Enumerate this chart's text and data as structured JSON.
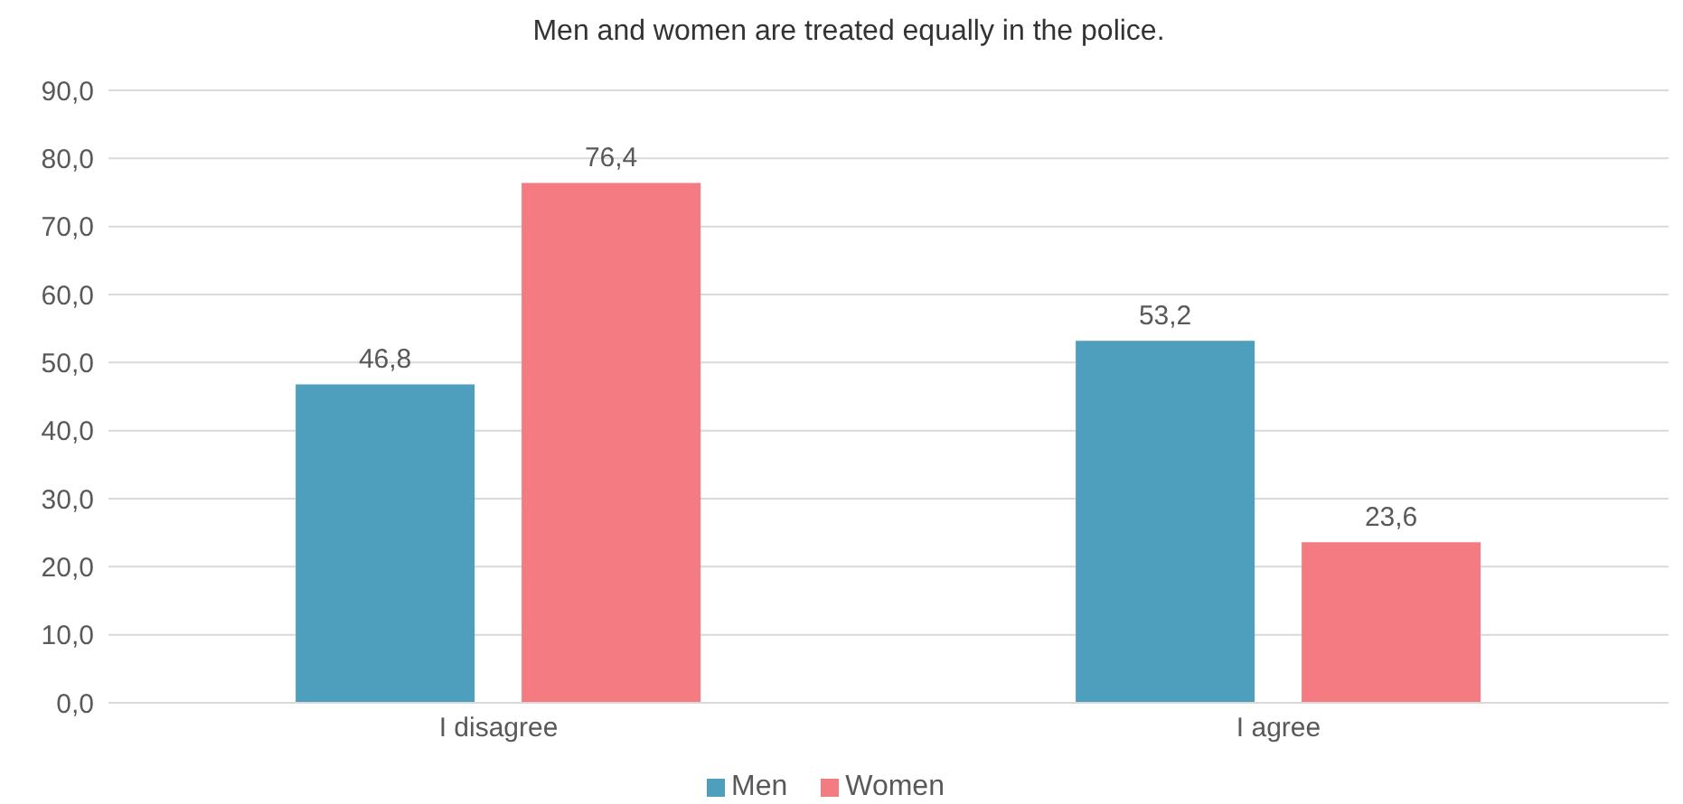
{
  "chart_data": {
    "type": "bar",
    "title": "Men and women are treated equally in the police.",
    "categories": [
      "I disagree",
      "I agree"
    ],
    "series": [
      {
        "name": "Men",
        "color": "#4e9fbe",
        "values": [
          46.8,
          53.2
        ],
        "value_labels": [
          "46,8",
          "53,2"
        ]
      },
      {
        "name": "Women",
        "color": "#f37b81",
        "values": [
          76.4,
          23.6
        ],
        "value_labels": [
          "76,4",
          "23,6"
        ]
      }
    ],
    "ylim": [
      0,
      90
    ],
    "yticks": [
      {
        "value": 0,
        "label": "0,0"
      },
      {
        "value": 10,
        "label": "10,0"
      },
      {
        "value": 20,
        "label": "20,0"
      },
      {
        "value": 30,
        "label": "30,0"
      },
      {
        "value": 40,
        "label": "40,0"
      },
      {
        "value": 50,
        "label": "50,0"
      },
      {
        "value": 60,
        "label": "60,0"
      },
      {
        "value": 70,
        "label": "70,0"
      },
      {
        "value": 80,
        "label": "80,0"
      },
      {
        "value": 90,
        "label": "90,0"
      }
    ],
    "grid": "y",
    "legend": "bottom"
  }
}
